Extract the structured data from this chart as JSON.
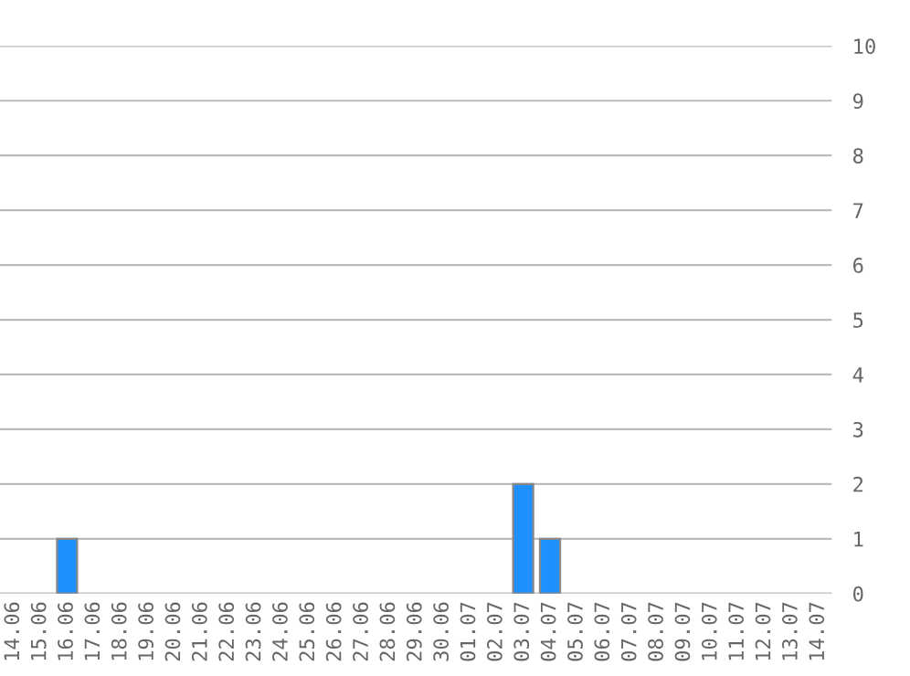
{
  "chart_data": {
    "type": "bar",
    "categories": [
      "14.06",
      "15.06",
      "16.06",
      "17.06",
      "18.06",
      "19.06",
      "20.06",
      "21.06",
      "22.06",
      "23.06",
      "24.06",
      "25.06",
      "26.06",
      "27.06",
      "28.06",
      "29.06",
      "30.06",
      "01.07",
      "02.07",
      "03.07",
      "04.07",
      "05.07",
      "06.07",
      "07.07",
      "08.07",
      "09.07",
      "10.07",
      "11.07",
      "12.07",
      "13.07",
      "14.07"
    ],
    "values": [
      0,
      0,
      1,
      0,
      0,
      0,
      0,
      0,
      0,
      0,
      0,
      0,
      0,
      0,
      0,
      0,
      0,
      0,
      0,
      2,
      1,
      0,
      0,
      0,
      0,
      0,
      0,
      0,
      0,
      0,
      0
    ],
    "color": "#1e90ff",
    "ylim": [
      0,
      10
    ],
    "yticks": [
      0,
      1,
      2,
      3,
      4,
      5,
      6,
      7,
      8,
      9,
      10
    ],
    "grid": "y"
  }
}
